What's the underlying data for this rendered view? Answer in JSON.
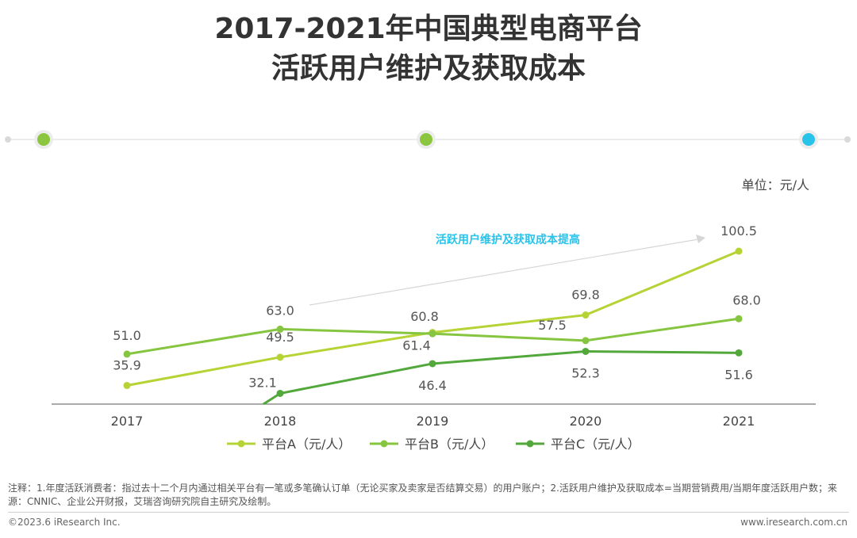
{
  "header": {
    "title_line1": "2017-2021年中国典型电商平台",
    "title_line2": "活跃用户维护及获取成本"
  },
  "unit_label": "单位：元/人",
  "footer": {
    "note": "注释：1.年度活跃消费者：指过去十二个月内通过相关平台有一笔或多笔确认订单（无论买家及卖家是否结算交易）的用户账户；2.活跃用户维护及获取成本=当期营销费用/当期年度活跃用户数；来源：CNNIC、企业公开财报，艾瑞咨询研究院自主研究及绘制。",
    "copyright": "©2023.6 iResearch Inc.",
    "website": "www.iresearch.com.cn"
  },
  "colors": {
    "series_a": "#b5d334",
    "series_b": "#86c540",
    "series_c": "#52a83a",
    "timeline_dot_green": "#8cc63f",
    "timeline_dot_blue": "#29c3ea",
    "annotation": "#29c3ea"
  },
  "chart_data": {
    "type": "line",
    "categories": [
      "2017",
      "2018",
      "2019",
      "2020",
      "2021"
    ],
    "series": [
      {
        "name": "平台A（元/人）",
        "values": [
          35.9,
          49.5,
          61.4,
          69.8,
          100.5
        ]
      },
      {
        "name": "平台B（元/人）",
        "values": [
          51.0,
          63.0,
          60.8,
          57.5,
          68.0
        ]
      },
      {
        "name": "平台C（元/人）",
        "values": [
          null,
          32.1,
          46.4,
          52.3,
          51.6
        ]
      }
    ],
    "annotation": "活跃用户维护及获取成本提高",
    "legend_position": "bottom",
    "grid": false
  }
}
